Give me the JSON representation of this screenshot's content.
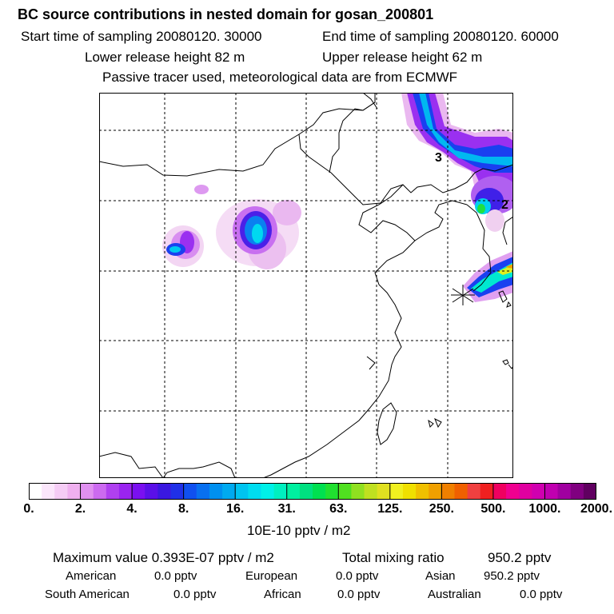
{
  "header": {
    "title": "BC  source contributions in nested domain for gosan_200801",
    "start_label": "Start time of sampling 20080120. 30000",
    "end_label": "End time of sampling 20080120. 60000",
    "lower_label": "Lower release height   82 m",
    "upper_label": "Upper release height   62 m",
    "note": "Passive tracer used, meteorological data are from ECMWF"
  },
  "map": {
    "contour_labels": [
      "3",
      "2"
    ],
    "receptor": "gosan-receptor-marker"
  },
  "colorbar": {
    "ticks": [
      "0.",
      "2.",
      "4.",
      "8.",
      "16.",
      "31.",
      "63.",
      "125.",
      "250.",
      "500.",
      "1000.",
      "2000."
    ],
    "unit": "10E-10 pptv / m2",
    "colors": [
      "#ffffff",
      "#fbe6fb",
      "#f5ccf5",
      "#efb0ef",
      "#e090f0",
      "#cc6af0",
      "#b040f0",
      "#9a24f0",
      "#7a10f0",
      "#5a10e8",
      "#3a18e0",
      "#2030e8",
      "#1050f0",
      "#0870f0",
      "#0090f0",
      "#00aaf0",
      "#00c4f0",
      "#00ddf0",
      "#00f0e8",
      "#00f0c0",
      "#00f0a0",
      "#00e080",
      "#00e050",
      "#20e030",
      "#50e020",
      "#90e020",
      "#c0e020",
      "#e0e020",
      "#f0f020",
      "#f0e000",
      "#f0c000",
      "#f0a000",
      "#f08000",
      "#f06000",
      "#f04040",
      "#f02020",
      "#f00060",
      "#f00090",
      "#e000a0",
      "#d000b0",
      "#c000b0",
      "#a000a0",
      "#800080",
      "#600060"
    ]
  },
  "summary": {
    "max_label": "Maximum value  0.393E-07 pptv / m2",
    "total_label": "Total mixing ratio",
    "total_value": "950.2 pptv",
    "regions": [
      {
        "name": "American",
        "value": "0.0 pptv"
      },
      {
        "name": "European",
        "value": "0.0 pptv"
      },
      {
        "name": "Asian",
        "value": "950.2 pptv"
      },
      {
        "name": "South American",
        "value": "0.0 pptv"
      },
      {
        "name": "African",
        "value": "0.0 pptv"
      },
      {
        "name": "Australian",
        "value": "0.0 pptv"
      }
    ]
  }
}
